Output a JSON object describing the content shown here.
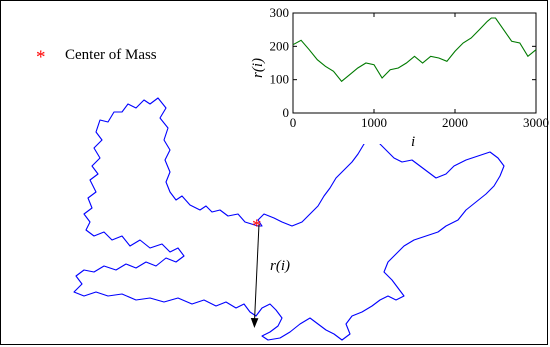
{
  "legend": {
    "marker": "*",
    "label": "Center of Mass"
  },
  "colors": {
    "curve": "#0000ff",
    "center": "#ff0000",
    "inset_line": "#007a00",
    "frame": "#000000"
  },
  "annotation": {
    "radius_label": "r(i)"
  },
  "chart_data": {
    "type": "line",
    "xlabel": "i",
    "ylabel": "r(i)",
    "xlim": [
      0,
      3000
    ],
    "ylim": [
      0,
      300
    ],
    "xticks": [
      "0",
      "1000",
      "2000",
      "3000"
    ],
    "yticks": [
      "0",
      "100",
      "200",
      "300"
    ],
    "series": [
      {
        "x": [
          0,
          100,
          200,
          300,
          400,
          500,
          600,
          700,
          800,
          900,
          1000,
          1100,
          1200,
          1300,
          1400,
          1500,
          1600,
          1700,
          1800,
          1900,
          2000,
          2100,
          2200,
          2300,
          2400,
          2450,
          2500,
          2600,
          2700,
          2800,
          2900,
          3000
        ],
        "y": [
          205,
          218,
          190,
          160,
          140,
          125,
          95,
          115,
          135,
          150,
          145,
          105,
          130,
          135,
          150,
          170,
          150,
          170,
          165,
          155,
          185,
          210,
          225,
          250,
          275,
          285,
          285,
          250,
          215,
          210,
          170,
          190
        ]
      }
    ]
  }
}
